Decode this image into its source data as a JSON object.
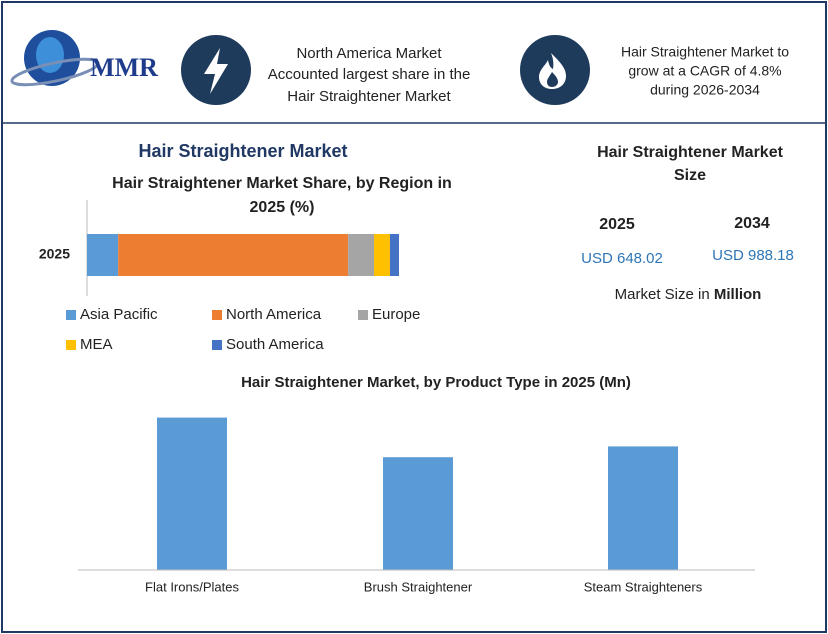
{
  "header": {
    "logo": "MMR",
    "highlight_1": [
      "North America Market",
      "Accounted largest share in the",
      "Hair Straightener Market"
    ],
    "highlight_2": [
      "Hair Straightener Market to",
      "grow at a CAGR of 4.8%",
      "during 2026-2034"
    ]
  },
  "section_title": "Hair Straightener Market",
  "market_size": {
    "title": [
      "Hair Straightener Market",
      "Size"
    ],
    "years": [
      "2025",
      "2034"
    ],
    "values": [
      "USD 648.02",
      "USD 988.18"
    ],
    "note": "Market Size in",
    "note_unit": "Million"
  },
  "chart_data": [
    {
      "type": "stacked_bar",
      "orientation": "horizontal",
      "title": [
        "Hair Straightener Market Share, by Region in",
        "2025 (%)"
      ],
      "categories": [
        "2025"
      ],
      "xlim": [
        0,
        100
      ],
      "series": [
        {
          "name": "Asia Pacific",
          "color": "#5b9bd5",
          "values": [
            10
          ]
        },
        {
          "name": "North America",
          "color": "#ed7d31",
          "values": [
            73.7
          ]
        },
        {
          "name": "Europe",
          "color": "#a5a5a5",
          "values": [
            8.3
          ]
        },
        {
          "name": "MEA",
          "color": "#ffc000",
          "values": [
            5.1
          ]
        },
        {
          "name": "South America",
          "color": "#4472c4",
          "values": [
            2.9
          ]
        }
      ]
    },
    {
      "type": "bar",
      "title": "Hair Straightener Market, by Product Type in 2025 (Mn)",
      "categories": [
        "Flat Irons/Plates",
        "Brush Straightener",
        "Steam Straighteners"
      ],
      "values": [
        254,
        188,
        206
      ],
      "color": "#5b9bd5",
      "ylim": [
        0,
        280
      ]
    }
  ]
}
